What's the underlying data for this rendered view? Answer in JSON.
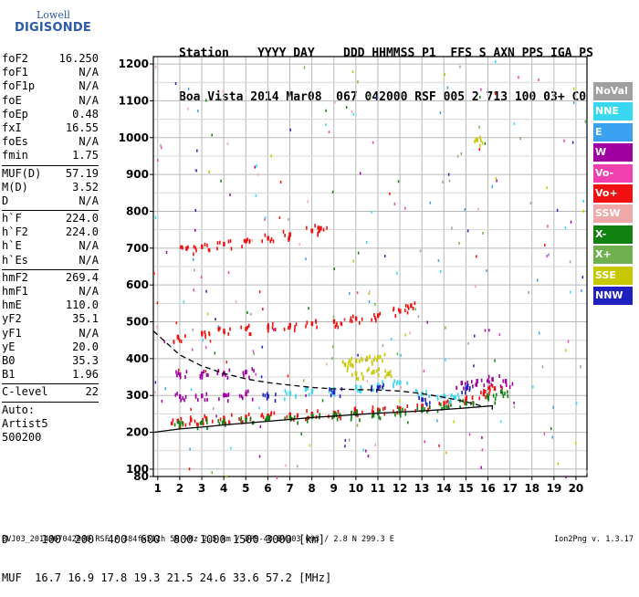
{
  "logo": {
    "line1": "Lowell",
    "line2": "DIGISONDE"
  },
  "header": {
    "line1": "Station    YYYY DAY    DDD HHMMSS P1  FFS S AXN PPS IGA PS",
    "line2": "Boa Vista 2014 Mar08  067 042000 RSF 005 2 713 100 03+ C0"
  },
  "params": [
    {
      "label": "foF2",
      "value": "16.250"
    },
    {
      "label": "foF1",
      "value": "N/A"
    },
    {
      "label": "foF1p",
      "value": "N/A"
    },
    {
      "label": "foE",
      "value": "N/A"
    },
    {
      "label": "foEp",
      "value": "0.48"
    },
    {
      "label": "fxI",
      "value": "16.55"
    },
    {
      "label": "foEs",
      "value": "N/A"
    },
    {
      "label": "fmin",
      "value": "1.75"
    },
    {
      "sep": true
    },
    {
      "label": "MUF(D)",
      "value": "57.19"
    },
    {
      "label": "M(D)",
      "value": "3.52"
    },
    {
      "label": "D",
      "value": "N/A"
    },
    {
      "sep": true
    },
    {
      "label": "h`F",
      "value": "224.0"
    },
    {
      "label": "h`F2",
      "value": "224.0"
    },
    {
      "label": "h`E",
      "value": "N/A"
    },
    {
      "label": "h`Es",
      "value": "N/A"
    },
    {
      "sep": true
    },
    {
      "label": "hmF2",
      "value": "269.4"
    },
    {
      "label": "hmF1",
      "value": "N/A"
    },
    {
      "label": "hmE",
      "value": "110.0"
    },
    {
      "label": "yF2",
      "value": "35.1"
    },
    {
      "label": "yF1",
      "value": "N/A"
    },
    {
      "label": "yE",
      "value": "20.0"
    },
    {
      "label": "B0",
      "value": "35.3"
    },
    {
      "label": "B1",
      "value": "1.96"
    },
    {
      "sep": true
    },
    {
      "label": "C-level",
      "value": "22"
    },
    {
      "sep": true
    },
    {
      "free": "Auto:"
    },
    {
      "free": "Artist5"
    },
    {
      "free": "500200"
    }
  ],
  "legend": [
    {
      "label": "NoVal",
      "color": "#a0a0a0"
    },
    {
      "label": "NNE",
      "color": "#38d8f0"
    },
    {
      "label": "E",
      "color": "#3aa0f0"
    },
    {
      "label": "W",
      "color": "#a000a0"
    },
    {
      "label": "Vo-",
      "color": "#f040b0"
    },
    {
      "label": "Vo+",
      "color": "#f01010"
    },
    {
      "label": "SSW",
      "color": "#f0a8a8"
    },
    {
      "label": "X-",
      "color": "#108010"
    },
    {
      "label": "X+",
      "color": "#70b050"
    },
    {
      "label": "SSE",
      "color": "#c8c800"
    },
    {
      "label": "NNW",
      "color": "#2020c0"
    }
  ],
  "bottom": {
    "line1": "D     100  200  400  600  800 1000 1500 3000 [km]",
    "line2": "MUF  16.7 16.9 17.8 19.3 21.5 24.6 33.6 57.2 [MHz]"
  },
  "footer": "BVJ03_2014067042000.RSF / 384fx512h 50 kHz 2.5 km / DPS-4D BVJ03 003 / 2.8 N 299.3 E",
  "version": "Ion2Png v. 1.3.17",
  "chart_data": {
    "type": "scatter",
    "x_ticks": [
      1,
      2,
      3,
      4,
      5,
      6,
      7,
      8,
      9,
      10,
      11,
      12,
      13,
      14,
      15,
      16,
      17,
      18,
      19,
      20
    ],
    "y_ticks": [
      80,
      100,
      200,
      300,
      400,
      500,
      600,
      700,
      800,
      900,
      1000,
      1100,
      1200
    ],
    "xlim": [
      0.8,
      20.5
    ],
    "ylim": [
      80,
      1220
    ],
    "grid": true,
    "legend_position": "right",
    "series": [
      {
        "name": "Vo+",
        "color": "#f01010",
        "points": [
          [
            1.9,
            232
          ],
          [
            2.5,
            235
          ],
          [
            3.2,
            237
          ],
          [
            4,
            240
          ],
          [
            5,
            243
          ],
          [
            6,
            246
          ],
          [
            7,
            249
          ],
          [
            8,
            251
          ],
          [
            9,
            254
          ],
          [
            10,
            258
          ],
          [
            11,
            262
          ],
          [
            12,
            266
          ],
          [
            13,
            272
          ],
          [
            14,
            280
          ],
          [
            15,
            292
          ],
          [
            15.8,
            305
          ],
          [
            16.3,
            320
          ],
          [
            1.9,
            460
          ],
          [
            3,
            470
          ],
          [
            4,
            476
          ],
          [
            5,
            482
          ],
          [
            6,
            487
          ],
          [
            7,
            492
          ],
          [
            8,
            496
          ],
          [
            9,
            502
          ],
          [
            10,
            510
          ],
          [
            11,
            518
          ],
          [
            12,
            530
          ],
          [
            12.5,
            545
          ],
          [
            2.3,
            700
          ],
          [
            3,
            705
          ],
          [
            4,
            712
          ],
          [
            5,
            720
          ],
          [
            6,
            728
          ],
          [
            7,
            738
          ],
          [
            8,
            748
          ],
          [
            8.4,
            755
          ]
        ]
      },
      {
        "name": "X-",
        "color": "#108010",
        "points": [
          [
            2,
            225
          ],
          [
            3,
            228
          ],
          [
            4,
            232
          ],
          [
            5,
            235
          ],
          [
            6,
            238
          ],
          [
            7,
            241
          ],
          [
            8,
            244
          ],
          [
            9,
            247
          ],
          [
            10,
            250
          ],
          [
            11,
            253
          ],
          [
            12,
            257
          ],
          [
            13,
            262
          ],
          [
            14,
            268
          ],
          [
            15,
            280
          ],
          [
            16,
            296
          ],
          [
            16.6,
            312
          ]
        ]
      },
      {
        "name": "W",
        "color": "#a000a0",
        "points": [
          [
            2,
            298
          ],
          [
            3,
            300
          ],
          [
            4,
            302
          ],
          [
            5,
            305
          ],
          [
            2,
            358
          ],
          [
            3,
            360
          ],
          [
            4,
            362
          ],
          [
            5,
            365
          ],
          [
            14.8,
            335
          ],
          [
            15.5,
            340
          ],
          [
            16.2,
            345
          ],
          [
            16.8,
            340
          ]
        ]
      },
      {
        "name": "SSE",
        "color": "#c8c800",
        "points": [
          [
            9.5,
            385
          ],
          [
            10,
            395
          ],
          [
            10.5,
            400
          ],
          [
            11,
            405
          ],
          [
            10,
            360
          ],
          [
            10.8,
            365
          ],
          [
            11.5,
            360
          ],
          [
            15.5,
            995
          ]
        ]
      },
      {
        "name": "NNE",
        "color": "#38d8f0",
        "points": [
          [
            7,
            306
          ],
          [
            8,
            312
          ],
          [
            9,
            318
          ],
          [
            10,
            324
          ],
          [
            11,
            330
          ],
          [
            12,
            336
          ],
          [
            13,
            306
          ],
          [
            14,
            300
          ],
          [
            14.5,
            296
          ]
        ]
      },
      {
        "name": "NNW",
        "color": "#2020c0",
        "points": [
          [
            6,
            299
          ],
          [
            9,
            310
          ],
          [
            11,
            322
          ],
          [
            13,
            290
          ],
          [
            15,
            320
          ]
        ]
      }
    ],
    "curves": [
      {
        "style": "dashed",
        "points": [
          [
            0.8,
            475
          ],
          [
            2,
            410
          ],
          [
            3,
            380
          ],
          [
            4,
            360
          ],
          [
            5,
            345
          ],
          [
            6,
            335
          ],
          [
            7,
            328
          ],
          [
            8,
            322
          ],
          [
            9,
            318
          ],
          [
            10,
            316
          ],
          [
            11,
            315
          ],
          [
            12,
            312
          ],
          [
            13,
            305
          ],
          [
            14,
            295
          ],
          [
            15,
            283
          ],
          [
            15.8,
            270
          ]
        ]
      },
      {
        "style": "solid",
        "points": [
          [
            0.8,
            200
          ],
          [
            2,
            209
          ],
          [
            3,
            214
          ],
          [
            4,
            220
          ],
          [
            5,
            225
          ],
          [
            6,
            230
          ],
          [
            7,
            235
          ],
          [
            8,
            240
          ],
          [
            9,
            244
          ],
          [
            10,
            248
          ],
          [
            11,
            252
          ],
          [
            12,
            255
          ],
          [
            13,
            258
          ],
          [
            14,
            262
          ],
          [
            15,
            266
          ],
          [
            15.8,
            270
          ],
          [
            16.2,
            272
          ],
          [
            16.2,
            262
          ]
        ]
      }
    ]
  }
}
